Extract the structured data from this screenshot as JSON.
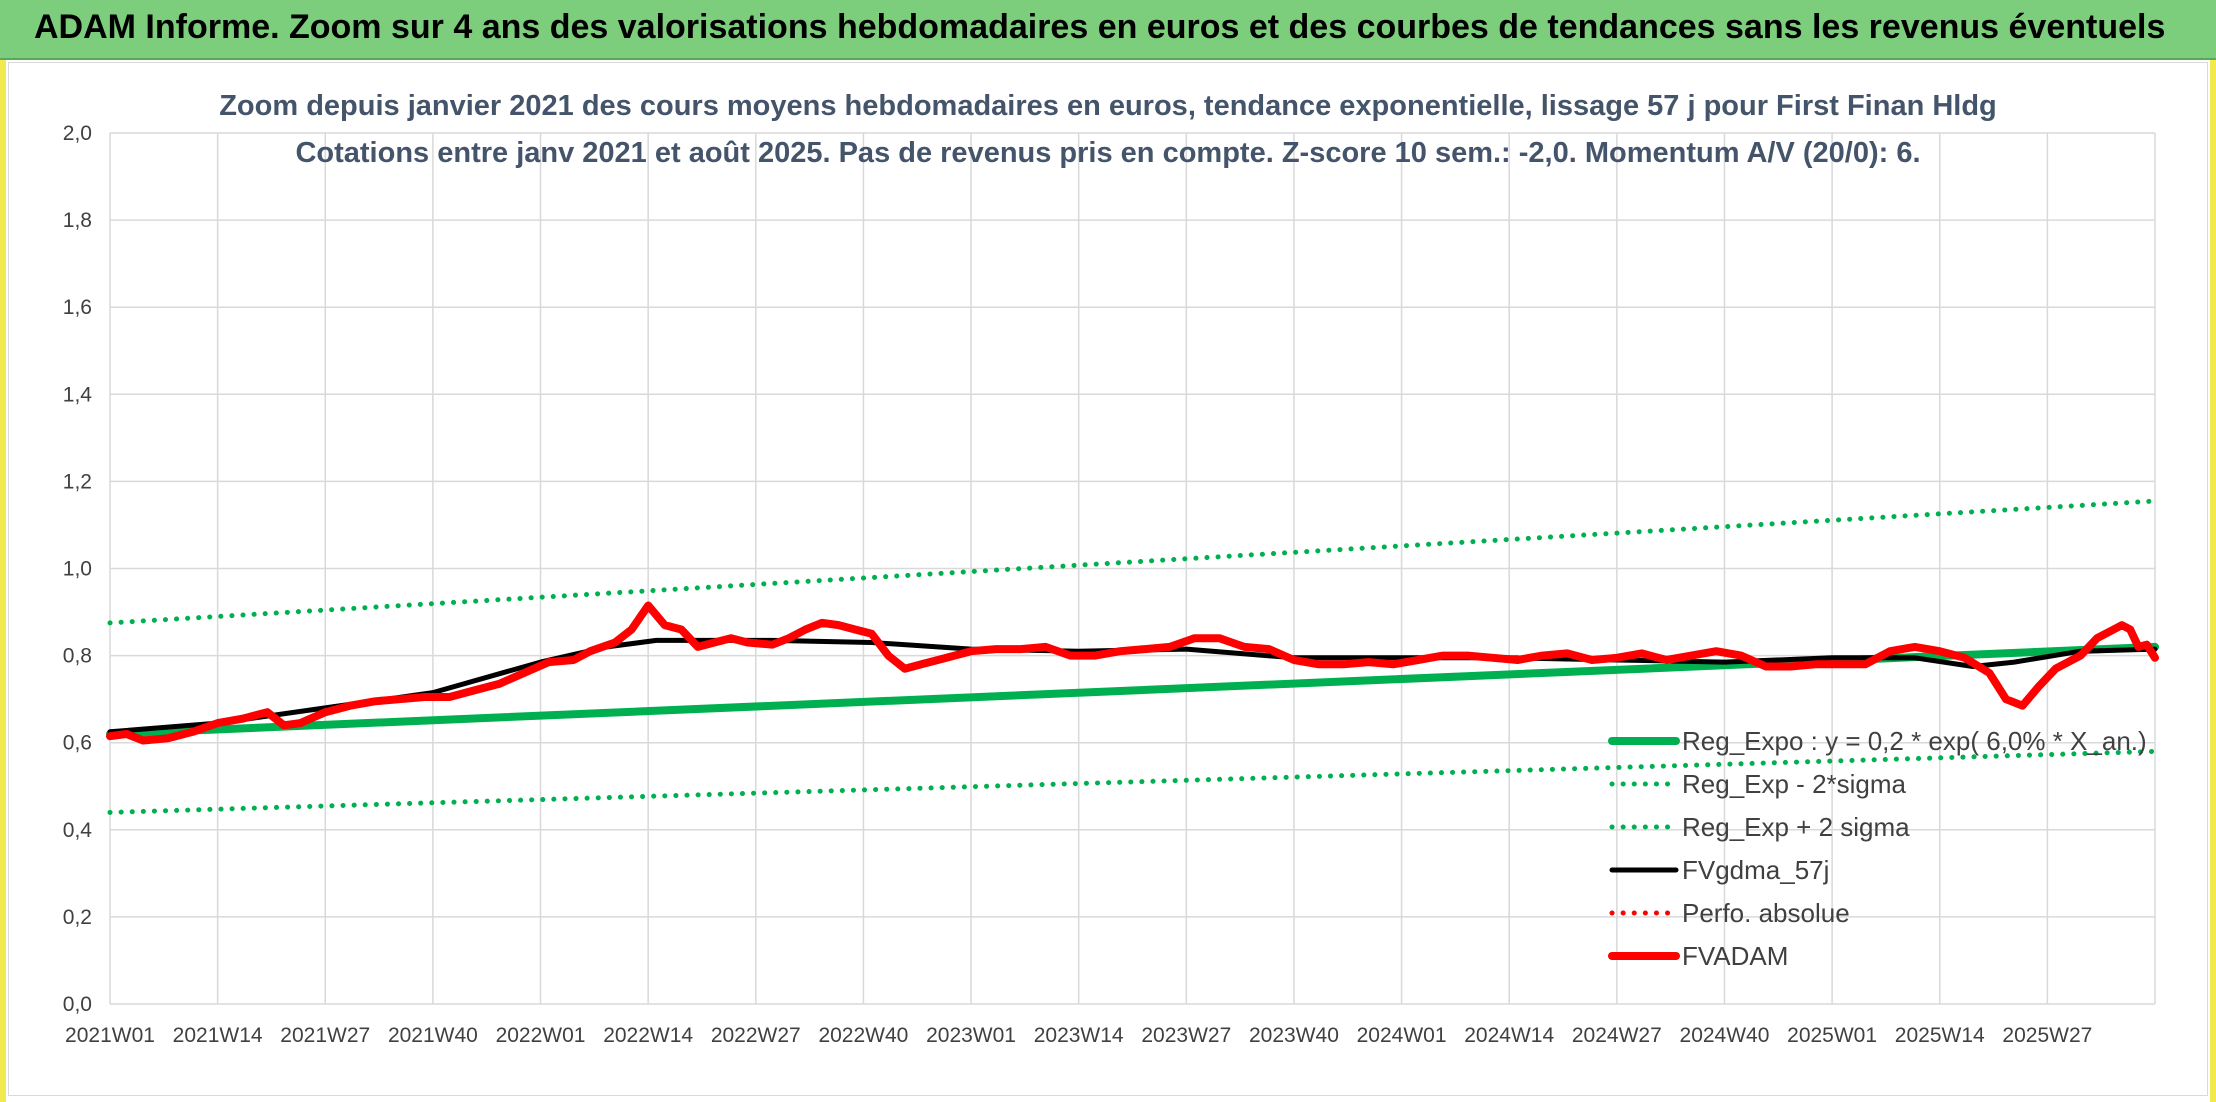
{
  "banner": {
    "title": "ADAM Informe. Zoom sur 4 ans des valorisations hebdomadaires en euros et des courbes de tendances sans les revenus éventuels"
  },
  "chart_data": {
    "type": "line",
    "title": "Zoom depuis janvier 2021 des cours moyens hebdomadaires en euros, tendance exponentielle, lissage 57 j pour First Finan Hldg",
    "subtitle": "Cotations entre janv 2021 et août 2025. Pas de revenus pris en compte. Z-score 10 sem.: -2,0. Momentum A/V (20/0): 6.",
    "xlabel": "",
    "ylabel": "",
    "ylim": [
      0,
      2
    ],
    "y_ticks": [
      "0,0",
      "0,2",
      "0,4",
      "0,6",
      "0,8",
      "1,0",
      "1,2",
      "1,4",
      "1,6",
      "1,8",
      "2,0"
    ],
    "x_tick_labels": [
      "2021W01",
      "2021W14",
      "2021W27",
      "2021W40",
      "2022W01",
      "2022W14",
      "2022W27",
      "2022W40",
      "2023W01",
      "2023W14",
      "2023W27",
      "2023W40",
      "2024W01",
      "2024W14",
      "2024W27",
      "2024W40",
      "2025W01",
      "2025W14",
      "2025W27"
    ],
    "grid": true,
    "legend_position": "bottom-right",
    "series": [
      {
        "name": "Reg_Expo : y = 0,2 * exp( 6,0% * X_an.)",
        "color": "#00b050",
        "style": "solid-thick",
        "points": [
          [
            0,
            0.62
          ],
          [
            247,
            0.82
          ]
        ]
      },
      {
        "name": "Reg_Exp - 2*sigma",
        "color": "#00b050",
        "style": "dotted",
        "points": [
          [
            0,
            0.44
          ],
          [
            247,
            0.58
          ]
        ]
      },
      {
        "name": "Reg_Exp + 2 sigma",
        "color": "#00b050",
        "style": "dotted",
        "points": [
          [
            0,
            0.875
          ],
          [
            247,
            1.155
          ]
        ]
      },
      {
        "name": "FVgdma_57j",
        "color": "#000000",
        "style": "solid",
        "points": [
          [
            0,
            0.625
          ],
          [
            13,
            0.645
          ],
          [
            26,
            0.68
          ],
          [
            39,
            0.715
          ],
          [
            52,
            0.785
          ],
          [
            60,
            0.82
          ],
          [
            66,
            0.835
          ],
          [
            80,
            0.835
          ],
          [
            92,
            0.83
          ],
          [
            104,
            0.815
          ],
          [
            117,
            0.81
          ],
          [
            130,
            0.815
          ],
          [
            143,
            0.795
          ],
          [
            156,
            0.795
          ],
          [
            169,
            0.795
          ],
          [
            182,
            0.79
          ],
          [
            195,
            0.785
          ],
          [
            208,
            0.795
          ],
          [
            218,
            0.795
          ],
          [
            225,
            0.775
          ],
          [
            230,
            0.785
          ],
          [
            238,
            0.81
          ],
          [
            247,
            0.815
          ]
        ]
      },
      {
        "name": "Perfo. absolue",
        "color": "#ff0000",
        "style": "dotted",
        "points": []
      },
      {
        "name": "FVADAM",
        "color": "#ff0000",
        "style": "solid-thick",
        "points": [
          [
            0,
            0.615
          ],
          [
            2,
            0.62
          ],
          [
            4,
            0.605
          ],
          [
            7,
            0.61
          ],
          [
            10,
            0.625
          ],
          [
            13,
            0.645
          ],
          [
            16,
            0.655
          ],
          [
            19,
            0.67
          ],
          [
            21,
            0.64
          ],
          [
            23,
            0.645
          ],
          [
            26,
            0.67
          ],
          [
            29,
            0.685
          ],
          [
            32,
            0.695
          ],
          [
            35,
            0.7
          ],
          [
            38,
            0.705
          ],
          [
            41,
            0.705
          ],
          [
            44,
            0.72
          ],
          [
            47,
            0.735
          ],
          [
            50,
            0.76
          ],
          [
            53,
            0.785
          ],
          [
            56,
            0.79
          ],
          [
            58,
            0.81
          ],
          [
            61,
            0.83
          ],
          [
            63,
            0.86
          ],
          [
            65,
            0.915
          ],
          [
            67,
            0.87
          ],
          [
            69,
            0.86
          ],
          [
            71,
            0.82
          ],
          [
            73,
            0.83
          ],
          [
            75,
            0.84
          ],
          [
            77,
            0.83
          ],
          [
            80,
            0.825
          ],
          [
            82,
            0.84
          ],
          [
            84,
            0.86
          ],
          [
            86,
            0.875
          ],
          [
            88,
            0.87
          ],
          [
            90,
            0.86
          ],
          [
            92,
            0.85
          ],
          [
            94,
            0.8
          ],
          [
            96,
            0.77
          ],
          [
            98,
            0.78
          ],
          [
            100,
            0.79
          ],
          [
            102,
            0.8
          ],
          [
            104,
            0.81
          ],
          [
            107,
            0.815
          ],
          [
            110,
            0.815
          ],
          [
            113,
            0.82
          ],
          [
            116,
            0.8
          ],
          [
            119,
            0.8
          ],
          [
            122,
            0.81
          ],
          [
            125,
            0.815
          ],
          [
            128,
            0.82
          ],
          [
            131,
            0.84
          ],
          [
            134,
            0.84
          ],
          [
            137,
            0.82
          ],
          [
            140,
            0.815
          ],
          [
            143,
            0.79
          ],
          [
            146,
            0.78
          ],
          [
            149,
            0.78
          ],
          [
            152,
            0.785
          ],
          [
            155,
            0.78
          ],
          [
            158,
            0.79
          ],
          [
            161,
            0.8
          ],
          [
            164,
            0.8
          ],
          [
            167,
            0.795
          ],
          [
            170,
            0.79
          ],
          [
            173,
            0.8
          ],
          [
            176,
            0.805
          ],
          [
            179,
            0.79
          ],
          [
            182,
            0.795
          ],
          [
            185,
            0.805
          ],
          [
            188,
            0.79
          ],
          [
            191,
            0.8
          ],
          [
            194,
            0.81
          ],
          [
            197,
            0.8
          ],
          [
            200,
            0.775
          ],
          [
            203,
            0.775
          ],
          [
            206,
            0.78
          ],
          [
            209,
            0.78
          ],
          [
            212,
            0.78
          ],
          [
            215,
            0.81
          ],
          [
            218,
            0.82
          ],
          [
            221,
            0.81
          ],
          [
            224,
            0.795
          ],
          [
            227,
            0.76
          ],
          [
            229,
            0.7
          ],
          [
            231,
            0.685
          ],
          [
            233,
            0.73
          ],
          [
            235,
            0.77
          ],
          [
            238,
            0.8
          ],
          [
            240,
            0.84
          ],
          [
            242,
            0.86
          ],
          [
            243,
            0.87
          ],
          [
            244,
            0.86
          ],
          [
            245,
            0.82
          ],
          [
            246,
            0.825
          ],
          [
            247,
            0.795
          ]
        ]
      }
    ]
  }
}
